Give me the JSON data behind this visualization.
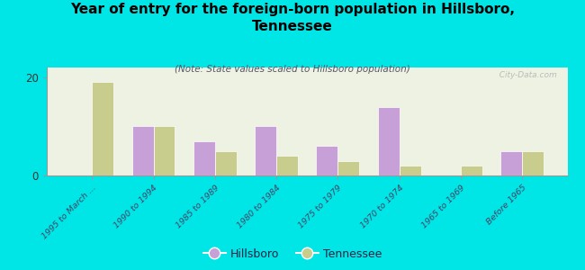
{
  "title": "Year of entry for the foreign-born population in Hillsboro,\nTennessee",
  "subtitle": "(Note: State values scaled to Hillsboro population)",
  "categories": [
    "1995 to March ...",
    "1990 to 1994",
    "1985 to 1989",
    "1980 to 1984",
    "1975 to 1979",
    "1970 to 1974",
    "1965 to 1969",
    "Before 1965"
  ],
  "hillsboro": [
    0,
    10,
    7,
    10,
    6,
    14,
    0,
    5
  ],
  "tennessee": [
    19,
    10,
    5,
    4,
    3,
    2,
    2,
    5
  ],
  "hillsboro_color": "#c8a0d8",
  "tennessee_color": "#c8cc8c",
  "background_color": "#00e5e5",
  "plot_bg": "#eef2e2",
  "ylim": [
    0,
    22
  ],
  "yticks": [
    0,
    20
  ],
  "bar_width": 0.35,
  "watermark": "  City-Data.com",
  "legend_hillsboro": "Hillsboro",
  "legend_tennessee": "Tennessee"
}
